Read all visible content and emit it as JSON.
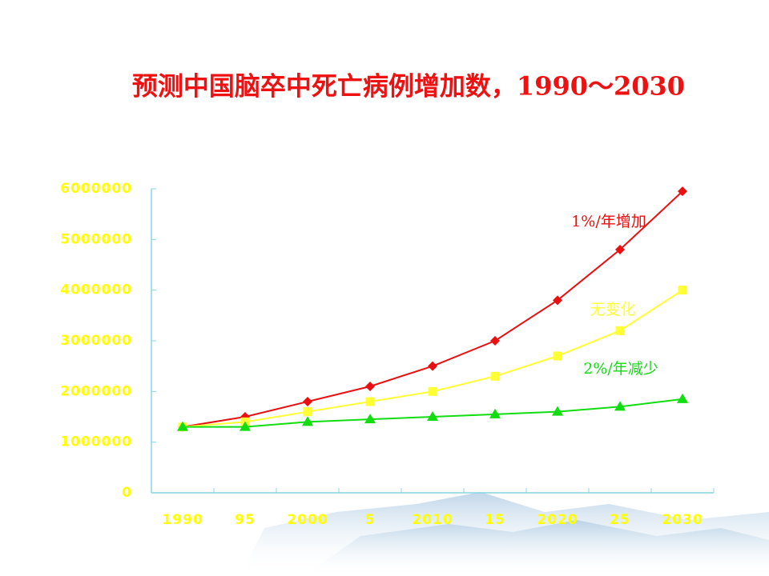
{
  "chart_data": {
    "type": "line",
    "title": "预测中国脑卒中死亡病例增加数，1990～2030",
    "categories": [
      "1990",
      "95",
      "2000",
      "5",
      "2010",
      "15",
      "2020",
      "25",
      "2030"
    ],
    "series": [
      {
        "name": "1%/年增加",
        "color": "#e81010",
        "marker": "diamond",
        "values": [
          1300000,
          1500000,
          1800000,
          2100000,
          2500000,
          3000000,
          3800000,
          4800000,
          5950000
        ]
      },
      {
        "name": "无变化",
        "color": "#ffff33",
        "marker": "square",
        "values": [
          1300000,
          1400000,
          1600000,
          1800000,
          2000000,
          2300000,
          2700000,
          3200000,
          4000000
        ]
      },
      {
        "name": "2%/年减少",
        "color": "#11dd11",
        "marker": "triangle",
        "values": [
          1300000,
          1300000,
          1400000,
          1450000,
          1500000,
          1550000,
          1600000,
          1700000,
          1850000
        ]
      }
    ],
    "ylim": [
      0,
      6000000
    ],
    "yticks": [
      0,
      1000000,
      2000000,
      3000000,
      4000000,
      5000000,
      6000000
    ]
  }
}
